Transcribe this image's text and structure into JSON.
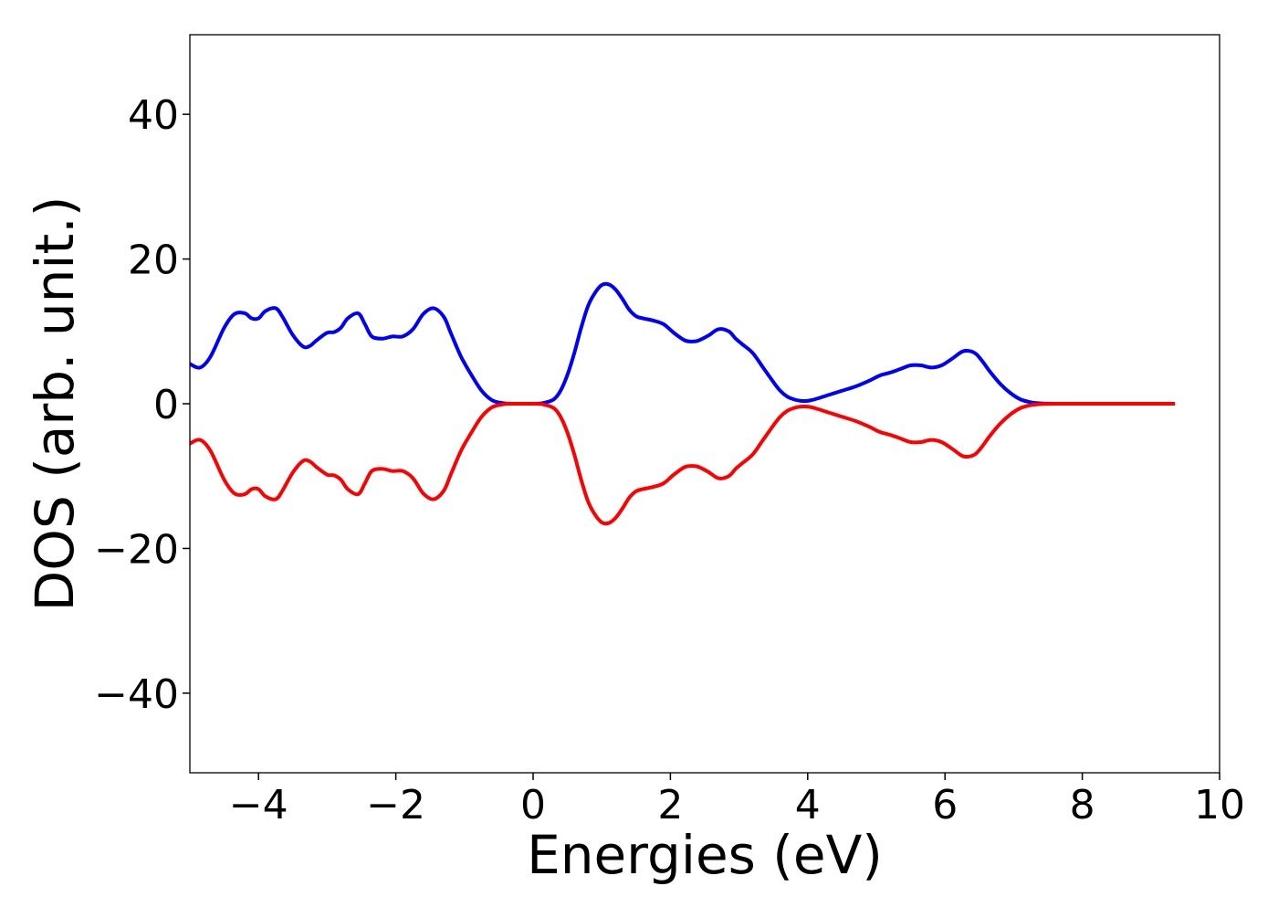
{
  "chart_data": {
    "type": "line",
    "title": "",
    "xlabel": "Energies (eV)",
    "ylabel": "DOS (arb. unit.)",
    "xlim": [
      -5,
      10
    ],
    "ylim": [
      -51,
      51
    ],
    "grid": false,
    "legend": "none",
    "x_ticks": [
      -4,
      -2,
      0,
      2,
      4,
      6,
      8,
      10
    ],
    "y_ticks": [
      -40,
      -20,
      0,
      20,
      40
    ],
    "x_tick_labels": [
      "−4",
      "−2",
      "0",
      "2",
      "4",
      "6",
      "8",
      "10"
    ],
    "y_tick_labels": [
      "−40",
      "−20",
      "0",
      "20",
      "40"
    ],
    "series": [
      {
        "color": "#0000ff",
        "x": [
          -5.0,
          -4.85,
          -4.7,
          -4.5,
          -4.35,
          -4.2,
          -4.1,
          -4.0,
          -3.9,
          -3.75,
          -3.65,
          -3.5,
          -3.35,
          -3.25,
          -3.15,
          -3.0,
          -2.9,
          -2.8,
          -2.7,
          -2.55,
          -2.45,
          -2.35,
          -2.2,
          -2.05,
          -1.9,
          -1.75,
          -1.6,
          -1.45,
          -1.3,
          -1.2,
          -1.05,
          -0.9,
          -0.75,
          -0.6,
          -0.45,
          -0.3,
          -0.15,
          0.0,
          0.15,
          0.3,
          0.4,
          0.5,
          0.6,
          0.7,
          0.8,
          0.9,
          1.0,
          1.1,
          1.2,
          1.3,
          1.4,
          1.5,
          1.6,
          1.75,
          1.9,
          2.05,
          2.2,
          2.3,
          2.4,
          2.55,
          2.7,
          2.85,
          2.95,
          3.05,
          3.2,
          3.35,
          3.5,
          3.6,
          3.7,
          3.8,
          3.9,
          4.0,
          4.1,
          4.3,
          4.5,
          4.7,
          4.9,
          5.05,
          5.2,
          5.35,
          5.5,
          5.65,
          5.8,
          5.95,
          6.1,
          6.25,
          6.35,
          6.45,
          6.55,
          6.65,
          6.8,
          6.95,
          7.1,
          7.25,
          7.4,
          7.6,
          8.0,
          8.5,
          9.0,
          9.35
        ],
        "y": [
          5.5,
          5.0,
          6.5,
          10.5,
          12.4,
          12.5,
          11.8,
          11.8,
          12.8,
          13.2,
          12.0,
          9.5,
          7.9,
          8.0,
          8.8,
          9.8,
          9.9,
          10.5,
          11.8,
          12.5,
          11.0,
          9.3,
          9.0,
          9.3,
          9.3,
          10.3,
          12.4,
          13.2,
          12.0,
          9.8,
          6.5,
          4.0,
          1.8,
          0.5,
          0.1,
          0.0,
          0.0,
          0.0,
          0.1,
          0.6,
          1.8,
          4.0,
          7.0,
          10.5,
          13.5,
          15.3,
          16.4,
          16.5,
          15.8,
          14.5,
          13.0,
          12.1,
          11.8,
          11.5,
          11.0,
          9.8,
          8.8,
          8.6,
          8.7,
          9.4,
          10.3,
          10.0,
          9.0,
          8.2,
          7.0,
          5.0,
          3.0,
          1.8,
          1.0,
          0.6,
          0.4,
          0.4,
          0.6,
          1.2,
          1.8,
          2.4,
          3.2,
          3.9,
          4.3,
          4.8,
          5.3,
          5.3,
          5.0,
          5.3,
          6.2,
          7.2,
          7.3,
          6.9,
          5.8,
          4.5,
          2.8,
          1.5,
          0.6,
          0.2,
          0.05,
          0.0,
          0.0,
          0.0,
          0.0,
          0.0
        ]
      },
      {
        "color": "#ff0000",
        "x": [
          -5.0,
          -4.85,
          -4.7,
          -4.5,
          -4.35,
          -4.2,
          -4.1,
          -4.0,
          -3.9,
          -3.75,
          -3.65,
          -3.5,
          -3.35,
          -3.25,
          -3.15,
          -3.0,
          -2.9,
          -2.8,
          -2.7,
          -2.55,
          -2.45,
          -2.35,
          -2.2,
          -2.05,
          -1.9,
          -1.75,
          -1.6,
          -1.45,
          -1.3,
          -1.2,
          -1.05,
          -0.9,
          -0.75,
          -0.6,
          -0.45,
          -0.3,
          -0.15,
          0.0,
          0.15,
          0.3,
          0.4,
          0.5,
          0.6,
          0.7,
          0.8,
          0.9,
          1.0,
          1.1,
          1.2,
          1.3,
          1.4,
          1.5,
          1.6,
          1.75,
          1.9,
          2.05,
          2.2,
          2.3,
          2.4,
          2.55,
          2.7,
          2.85,
          2.95,
          3.05,
          3.2,
          3.35,
          3.5,
          3.6,
          3.7,
          3.8,
          3.9,
          4.0,
          4.1,
          4.3,
          4.5,
          4.7,
          4.9,
          5.05,
          5.2,
          5.35,
          5.5,
          5.65,
          5.8,
          5.95,
          6.1,
          6.25,
          6.35,
          6.45,
          6.55,
          6.65,
          6.8,
          6.95,
          7.1,
          7.25,
          7.4,
          7.6,
          8.0,
          8.5,
          9.0,
          9.35
        ],
        "y": [
          -5.5,
          -5.0,
          -6.5,
          -10.5,
          -12.4,
          -12.5,
          -11.8,
          -11.8,
          -12.8,
          -13.2,
          -12.0,
          -9.5,
          -7.9,
          -8.0,
          -8.8,
          -9.8,
          -9.9,
          -10.5,
          -11.8,
          -12.5,
          -11.0,
          -9.3,
          -9.0,
          -9.3,
          -9.3,
          -10.3,
          -12.4,
          -13.2,
          -12.0,
          -9.8,
          -6.5,
          -4.0,
          -1.8,
          -0.5,
          -0.1,
          0.0,
          0.0,
          0.0,
          -0.1,
          -0.6,
          -1.8,
          -4.0,
          -7.0,
          -10.5,
          -13.5,
          -15.3,
          -16.4,
          -16.5,
          -15.8,
          -14.5,
          -13.0,
          -12.1,
          -11.8,
          -11.5,
          -11.0,
          -9.8,
          -8.8,
          -8.6,
          -8.7,
          -9.4,
          -10.3,
          -10.0,
          -9.0,
          -8.2,
          -7.0,
          -5.0,
          -3.0,
          -1.8,
          -1.0,
          -0.6,
          -0.4,
          -0.4,
          -0.6,
          -1.2,
          -1.8,
          -2.4,
          -3.2,
          -3.9,
          -4.3,
          -4.8,
          -5.3,
          -5.3,
          -5.0,
          -5.3,
          -6.2,
          -7.2,
          -7.3,
          -6.9,
          -5.8,
          -4.5,
          -2.8,
          -1.5,
          -0.6,
          -0.2,
          -0.05,
          0.0,
          0.0,
          0.0,
          0.0,
          0.0
        ]
      }
    ]
  }
}
